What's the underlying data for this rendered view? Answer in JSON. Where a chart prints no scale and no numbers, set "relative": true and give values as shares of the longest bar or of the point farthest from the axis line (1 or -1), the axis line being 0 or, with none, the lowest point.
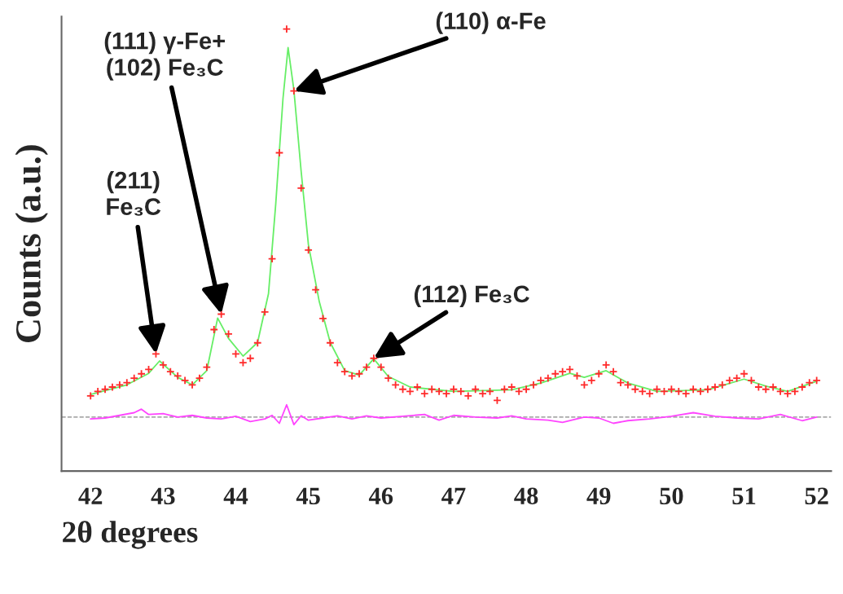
{
  "chart_data": {
    "type": "line",
    "relative": true,
    "xlabel": "2θ degrees",
    "ylabel": "Counts (a.u.)",
    "xlim": [
      41.6,
      52.2
    ],
    "xticks": [
      42,
      43,
      44,
      45,
      46,
      47,
      48,
      49,
      50,
      51,
      52
    ],
    "grid": false,
    "legend": false,
    "tick_labels": "x",
    "series": [
      {
        "type": "scatter",
        "marker": "cross",
        "color": "#ff2a2a",
        "x": [
          42.0,
          42.1,
          42.2,
          42.3,
          42.4,
          42.5,
          42.6,
          42.7,
          42.8,
          42.9,
          43.0,
          43.1,
          43.2,
          43.3,
          43.4,
          43.5,
          43.6,
          43.7,
          43.8,
          43.9,
          44.0,
          44.1,
          44.2,
          44.3,
          44.4,
          44.5,
          44.6,
          44.7,
          44.8,
          44.9,
          45.0,
          45.1,
          45.2,
          45.3,
          45.4,
          45.5,
          45.6,
          45.7,
          45.8,
          45.9,
          46.0,
          46.1,
          46.2,
          46.3,
          46.4,
          46.5,
          46.6,
          46.7,
          46.8,
          46.9,
          47.0,
          47.1,
          47.2,
          47.3,
          47.4,
          47.5,
          47.6,
          47.7,
          47.8,
          47.9,
          48.0,
          48.1,
          48.2,
          48.3,
          48.4,
          48.5,
          48.6,
          48.7,
          48.8,
          48.9,
          49.0,
          49.1,
          49.2,
          49.3,
          49.4,
          49.5,
          49.6,
          49.7,
          49.8,
          49.9,
          50.0,
          50.1,
          50.2,
          50.3,
          50.4,
          50.5,
          50.6,
          50.7,
          50.8,
          50.9,
          51.0,
          51.1,
          51.2,
          51.3,
          51.4,
          51.5,
          51.6,
          51.7,
          51.8,
          51.9,
          52.0
        ],
        "values": [
          0.17,
          0.18,
          0.185,
          0.19,
          0.195,
          0.2,
          0.21,
          0.22,
          0.23,
          0.265,
          0.24,
          0.225,
          0.215,
          0.205,
          0.195,
          0.21,
          0.235,
          0.32,
          0.355,
          0.31,
          0.265,
          0.245,
          0.255,
          0.29,
          0.36,
          0.48,
          0.72,
          1.0,
          0.86,
          0.64,
          0.5,
          0.41,
          0.345,
          0.29,
          0.245,
          0.225,
          0.215,
          0.22,
          0.235,
          0.255,
          0.235,
          0.21,
          0.195,
          0.185,
          0.18,
          0.19,
          0.175,
          0.185,
          0.18,
          0.175,
          0.185,
          0.18,
          0.17,
          0.185,
          0.175,
          0.18,
          0.16,
          0.185,
          0.19,
          0.18,
          0.185,
          0.195,
          0.205,
          0.21,
          0.22,
          0.225,
          0.23,
          0.215,
          0.195,
          0.205,
          0.22,
          0.24,
          0.225,
          0.2,
          0.195,
          0.185,
          0.18,
          0.175,
          0.185,
          0.18,
          0.185,
          0.18,
          0.175,
          0.185,
          0.18,
          0.185,
          0.19,
          0.195,
          0.205,
          0.21,
          0.22,
          0.205,
          0.19,
          0.185,
          0.19,
          0.18,
          0.175,
          0.18,
          0.19,
          0.2,
          0.205
        ]
      },
      {
        "marker": "none",
        "line_style": "solid",
        "color": "#66ee66",
        "x": [
          42.0,
          42.5,
          42.8,
          42.95,
          43.2,
          43.4,
          43.6,
          43.75,
          43.9,
          44.1,
          44.3,
          44.45,
          44.55,
          44.65,
          44.72,
          44.8,
          44.9,
          45.0,
          45.15,
          45.3,
          45.5,
          45.7,
          45.9,
          46.1,
          46.4,
          47.0,
          47.8,
          48.2,
          48.6,
          48.8,
          49.1,
          49.4,
          49.8,
          50.5,
          51.0,
          51.3,
          51.6,
          52.0
        ],
        "values": [
          0.173,
          0.195,
          0.221,
          0.249,
          0.212,
          0.195,
          0.227,
          0.346,
          0.3,
          0.26,
          0.291,
          0.401,
          0.604,
          0.843,
          0.958,
          0.862,
          0.678,
          0.512,
          0.383,
          0.291,
          0.227,
          0.217,
          0.254,
          0.214,
          0.19,
          0.18,
          0.184,
          0.199,
          0.221,
          0.212,
          0.227,
          0.199,
          0.18,
          0.184,
          0.208,
          0.192,
          0.18,
          0.203
        ]
      },
      {
        "marker": "none",
        "line_style": "solid",
        "color": "#ff44ff",
        "x": [
          42.0,
          42.2,
          42.4,
          42.6,
          42.7,
          42.8,
          43.0,
          43.2,
          43.4,
          43.6,
          43.8,
          44.0,
          44.2,
          44.4,
          44.5,
          44.6,
          44.7,
          44.8,
          44.9,
          45.0,
          45.2,
          45.4,
          45.6,
          45.8,
          46.0,
          46.3,
          46.6,
          46.8,
          47.0,
          47.3,
          47.6,
          47.8,
          48.0,
          48.3,
          48.5,
          48.8,
          49.0,
          49.2,
          49.4,
          49.7,
          50.0,
          50.3,
          50.6,
          50.9,
          51.2,
          51.5,
          51.8,
          52.0
        ],
        "values": [
          0.118,
          0.12,
          0.126,
          0.132,
          0.14,
          0.128,
          0.13,
          0.122,
          0.126,
          0.12,
          0.118,
          0.124,
          0.112,
          0.118,
          0.126,
          0.108,
          0.15,
          0.105,
          0.125,
          0.115,
          0.12,
          0.125,
          0.118,
          0.125,
          0.12,
          0.124,
          0.128,
          0.115,
          0.126,
          0.122,
          0.12,
          0.125,
          0.118,
          0.115,
          0.11,
          0.122,
          0.12,
          0.108,
          0.114,
          0.118,
          0.124,
          0.132,
          0.124,
          0.12,
          0.118,
          0.128,
          0.114,
          0.122
        ]
      }
    ],
    "ref_lines": [
      {
        "axis": "y",
        "value": 0.122,
        "color": "#888888",
        "line_style": "dashed"
      }
    ],
    "annotations": [
      {
        "text": "(211)\nFe₃C",
        "x": 42.9,
        "y": 0.265
      },
      {
        "text": "(111) γ-Fe+\n(102) Fe₃C",
        "x": 43.8,
        "y": 0.355
      },
      {
        "text": "(110) α-Fe",
        "x": 44.8,
        "y": 0.86
      },
      {
        "text": "(112) Fe₃C",
        "x": 45.9,
        "y": 0.255
      }
    ]
  }
}
